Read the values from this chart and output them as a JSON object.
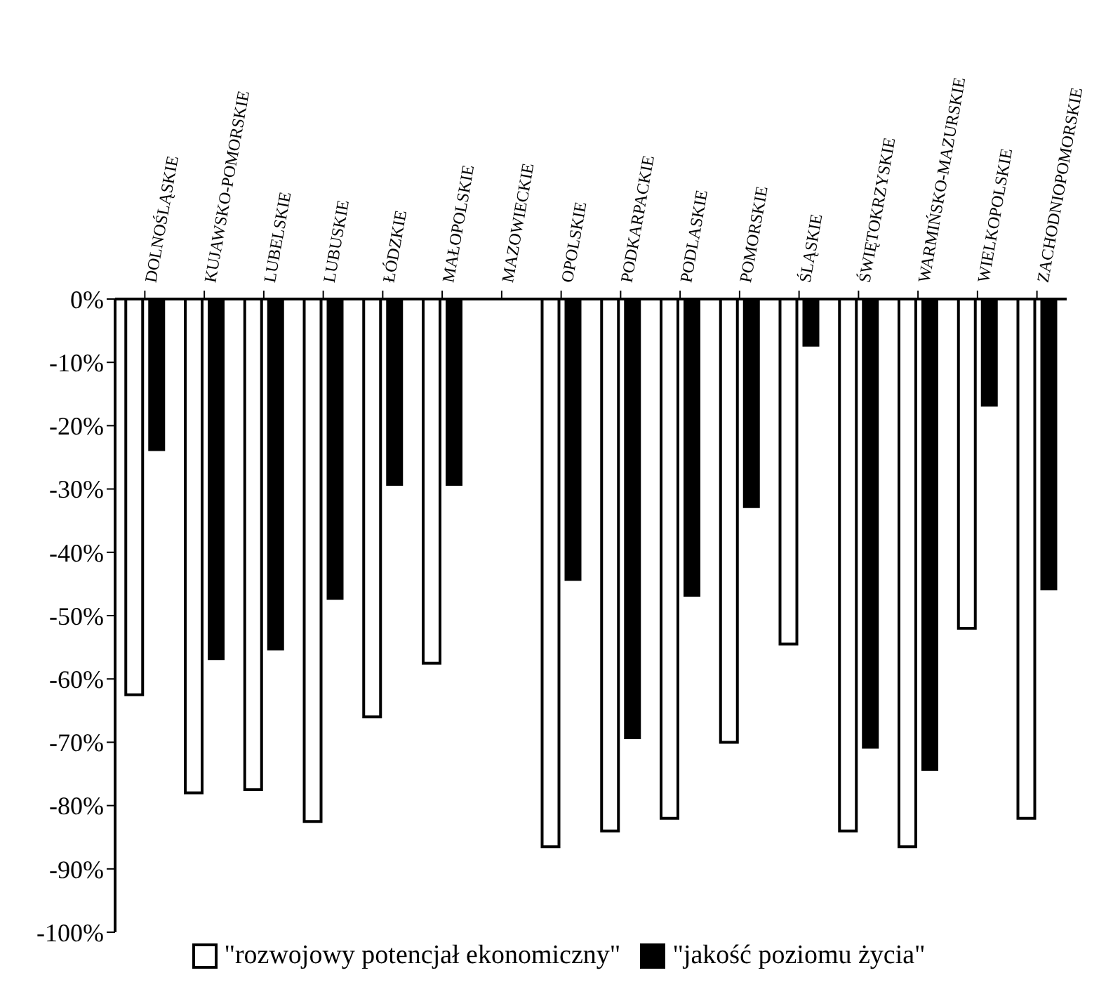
{
  "chart_data": {
    "type": "bar",
    "categories": [
      "DOLNOŚLĄSKIE",
      "KUJAWSKO-POMORSKIE",
      "LUBELSKIE",
      "LUBUSKIE",
      "ŁÓDZKIE",
      "MAŁOPOLSKIE",
      "MAZOWIECKIE",
      "OPOLSKIE",
      "PODKARPACKIE",
      "PODLASKIE",
      "POMORSKIE",
      "ŚLĄSKIE",
      "ŚWIĘTOKRZYSKIE",
      "WARMIŃSKO-MAZURSKIE",
      "WIELKOPOLSKIE",
      "ZACHODNIOPOMORSKIE"
    ],
    "series": [
      {
        "name": "\"rozwojowy potencjał ekonomiczny\"",
        "color": "#ffffff",
        "values": [
          -62.5,
          -78,
          -77.5,
          -82.5,
          -66,
          -57.5,
          null,
          -86.5,
          -84,
          -82,
          -70,
          -54.5,
          -84,
          -86.5,
          -52,
          -82
        ]
      },
      {
        "name": "\"jakość poziomu życia\"",
        "color": "#000000",
        "values": [
          -24,
          -57,
          -55.5,
          -47.5,
          -29.5,
          -29.5,
          null,
          -44.5,
          -69.5,
          -47,
          -33,
          -7.5,
          -71,
          -74.5,
          -17,
          -46
        ]
      }
    ],
    "ylim": [
      -100,
      0
    ],
    "yticks": [
      {
        "value": 0,
        "label": "0%"
      },
      {
        "value": -10,
        "label": "-10%"
      },
      {
        "value": -20,
        "label": "-20%"
      },
      {
        "value": -30,
        "label": "-30%"
      },
      {
        "value": -40,
        "label": "-40%"
      },
      {
        "value": -50,
        "label": "-50%"
      },
      {
        "value": -60,
        "label": "-60%"
      },
      {
        "value": -70,
        "label": "-70%"
      },
      {
        "value": -80,
        "label": "-80%"
      },
      {
        "value": -90,
        "label": "-90%"
      },
      {
        "value": -100,
        "label": "-100%"
      }
    ],
    "legend": "bottom"
  }
}
